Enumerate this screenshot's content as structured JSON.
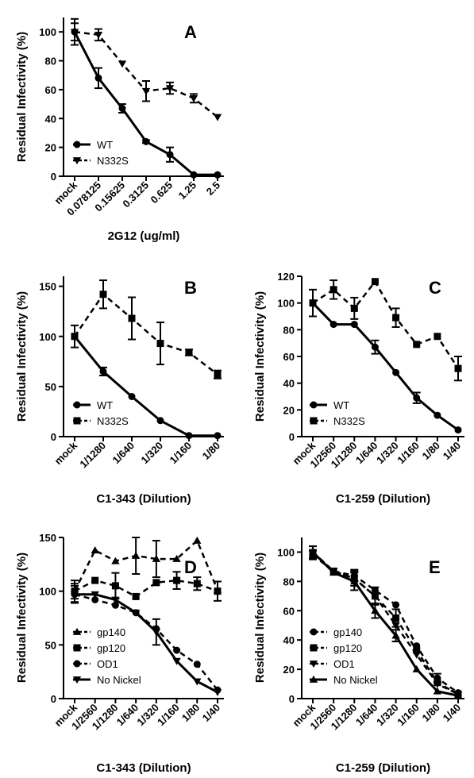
{
  "colors": {
    "ink": "#000000",
    "background": "#ffffff"
  },
  "chart_data": [
    {
      "panel": "A",
      "type": "line",
      "ylabel": "Residual Infectivity (%)",
      "xlabel": "2G12 (ug/ml)",
      "categories": [
        "mock",
        "0.078125",
        "0.15625",
        "0.3125",
        "0.625",
        "1.25",
        "2.5"
      ],
      "ylim": [
        0,
        110
      ],
      "yticks": [
        0,
        20,
        40,
        60,
        80,
        100
      ],
      "legend_position": "bottom-left",
      "series": [
        {
          "name": "WT",
          "marker": "circle",
          "dash": "solid",
          "values": [
            100,
            68,
            47,
            24,
            15,
            1,
            1
          ],
          "errors": [
            6,
            7,
            3,
            1,
            5,
            0,
            0
          ]
        },
        {
          "name": "N332S",
          "marker": "triangle-down",
          "dash": "dashed",
          "values": [
            100,
            98,
            78,
            59,
            61,
            54,
            41
          ],
          "errors": [
            9,
            4,
            0,
            7,
            4,
            3,
            0
          ]
        }
      ]
    },
    {
      "panel": "B",
      "type": "line",
      "ylabel": "Residual Infectivity (%)",
      "xlabel": "C1-343 (Dilution)",
      "categories": [
        "mock",
        "1/1280",
        "1/640",
        "1/320",
        "1/160",
        "1/80"
      ],
      "ylim": [
        0,
        160
      ],
      "yticks": [
        0,
        50,
        100,
        150
      ],
      "legend_position": "bottom-left",
      "series": [
        {
          "name": "WT",
          "marker": "circle",
          "dash": "solid",
          "values": [
            100,
            65,
            40,
            16,
            1,
            1
          ],
          "errors": [
            0,
            4,
            0,
            0,
            0,
            0
          ]
        },
        {
          "name": "N332S",
          "marker": "square",
          "dash": "dashed",
          "values": [
            100,
            142,
            118,
            93,
            84,
            62
          ],
          "errors": [
            11,
            14,
            21,
            21,
            3,
            4
          ]
        }
      ]
    },
    {
      "panel": "C",
      "type": "line",
      "ylabel": "Residual Infectivity (%)",
      "xlabel": "C1-259 (Dilution)",
      "categories": [
        "mock",
        "1/2560",
        "1/1280",
        "1/640",
        "1/320",
        "1/160",
        "1/80",
        "1/40"
      ],
      "ylim": [
        0,
        120
      ],
      "yticks": [
        0,
        20,
        40,
        60,
        80,
        100,
        120
      ],
      "legend_position": "bottom-left",
      "series": [
        {
          "name": "WT",
          "marker": "circle",
          "dash": "solid",
          "values": [
            100,
            84,
            84,
            67,
            48,
            29,
            16,
            5
          ],
          "errors": [
            0,
            0,
            0,
            5,
            0,
            4,
            0,
            0
          ]
        },
        {
          "name": "N332S",
          "marker": "square",
          "dash": "dashed",
          "values": [
            100,
            110,
            96,
            116,
            89,
            69,
            75,
            51
          ],
          "errors": [
            10,
            7,
            8,
            0,
            7,
            0,
            0,
            9
          ]
        }
      ]
    },
    {
      "panel": "D",
      "type": "line",
      "ylabel": "Residual Infectivity (%)",
      "xlabel": "C1-343 (Dilution)",
      "categories": [
        "mock",
        "1/2560",
        "1/1280",
        "1/640",
        "1/320",
        "1/160",
        "1/80",
        "1/40"
      ],
      "ylim": [
        0,
        150
      ],
      "yticks": [
        0,
        50,
        100,
        150
      ],
      "legend_position": "bottom-left",
      "series": [
        {
          "name": "gp140",
          "marker": "triangle-up",
          "dash": "dashed",
          "values": [
            100,
            138,
            128,
            133,
            130,
            130,
            147,
            101
          ],
          "errors": [
            10,
            0,
            0,
            17,
            17,
            0,
            0,
            0
          ]
        },
        {
          "name": "gp120",
          "marker": "square",
          "dash": "dashed",
          "values": [
            100,
            110,
            105,
            95,
            108,
            110,
            107,
            100
          ],
          "errors": [
            7,
            0,
            12,
            0,
            0,
            8,
            6,
            9
          ]
        },
        {
          "name": "OD1",
          "marker": "circle",
          "dash": "dashed",
          "values": [
            97,
            92,
            87,
            80,
            65,
            45,
            32,
            8
          ],
          "errors": [
            0,
            0,
            0,
            0,
            0,
            0,
            0,
            0
          ]
        },
        {
          "name": "No Nickel",
          "marker": "triangle-down",
          "dash": "solid",
          "values": [
            97,
            97,
            92,
            80,
            62,
            35,
            16,
            6
          ],
          "errors": [
            8,
            0,
            0,
            0,
            12,
            0,
            0,
            0
          ]
        }
      ]
    },
    {
      "panel": "E",
      "type": "line",
      "ylabel": "Residual Infectivity (%)",
      "xlabel": "C1-259 (Dilution)",
      "categories": [
        "mock",
        "1/2560",
        "1/1280",
        "1/640",
        "1/320",
        "1/160",
        "1/80",
        "1/40"
      ],
      "ylim": [
        0,
        110
      ],
      "yticks": [
        0,
        20,
        40,
        60,
        80,
        100
      ],
      "legend_position": "bottom-left",
      "series": [
        {
          "name": "gp140",
          "marker": "circle",
          "dash": "dashed",
          "values": [
            100,
            87,
            84,
            74,
            64,
            36,
            14,
            4
          ],
          "errors": [
            4,
            0,
            4,
            0,
            0,
            0,
            3,
            0
          ]
        },
        {
          "name": "gp120",
          "marker": "square",
          "dash": "dashed",
          "values": [
            98,
            87,
            82,
            70,
            55,
            33,
            11,
            3
          ],
          "errors": [
            3,
            0,
            5,
            6,
            6,
            0,
            0,
            0
          ]
        },
        {
          "name": "OD1",
          "marker": "triangle-down",
          "dash": "dashed",
          "values": [
            100,
            87,
            82,
            70,
            50,
            30,
            10,
            3
          ],
          "errors": [
            0,
            0,
            0,
            0,
            0,
            0,
            0,
            0
          ]
        },
        {
          "name": "No Nickel",
          "marker": "triangle-up",
          "dash": "solid",
          "values": [
            100,
            86,
            80,
            60,
            43,
            20,
            5,
            2
          ],
          "errors": [
            4,
            0,
            6,
            5,
            4,
            0,
            0,
            0
          ]
        }
      ]
    }
  ]
}
